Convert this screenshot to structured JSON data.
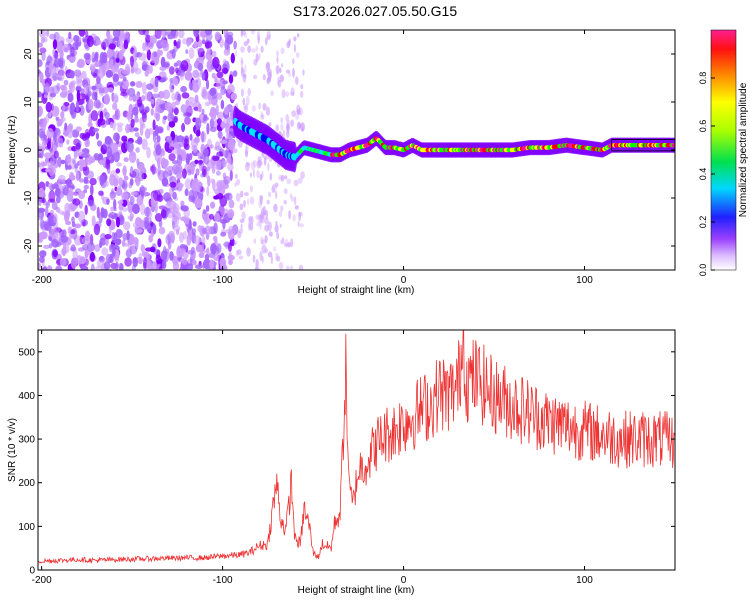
{
  "title": "S173.2026.027.05.50.G15",
  "chart_data": [
    {
      "type": "heatmap",
      "xlabel": "Height of straight line (km)",
      "ylabel": "Frequency (Hz)",
      "xlim": [
        -202,
        150
      ],
      "ylim": [
        -25,
        25
      ],
      "xticks": [
        -200,
        -100,
        0,
        100
      ],
      "yticks": [
        -20,
        -10,
        0,
        10,
        20
      ],
      "colorbar": {
        "label": "Normalized spectral amplitude",
        "range": [
          0,
          1
        ],
        "ticks": [
          0.0,
          0.2,
          0.4,
          0.6,
          0.8
        ],
        "colors": [
          "#ffffff",
          "#cc99ff",
          "#7f00ff",
          "#0000ff",
          "#00e5ff",
          "#00ff00",
          "#ffff00",
          "#ff8000",
          "#ff0000",
          "#ff1493"
        ]
      },
      "ridge": {
        "x": [
          -93,
          -90,
          -85,
          -80,
          -75,
          -70,
          -65,
          -60,
          -55,
          -50,
          -45,
          -40,
          -35,
          -30,
          -25,
          -20,
          -15,
          -10,
          -5,
          0,
          5,
          10,
          15,
          20,
          30,
          40,
          50,
          60,
          70,
          80,
          90,
          100,
          110,
          115,
          120,
          130,
          140,
          150
        ],
        "y": [
          6,
          5,
          4,
          3,
          2,
          0.5,
          -1,
          -1.5,
          0.5,
          0,
          -0.5,
          -1,
          -1,
          0,
          0.5,
          1,
          2.5,
          0.5,
          0.5,
          0,
          1,
          0,
          0,
          0,
          0,
          0,
          0,
          0,
          0.5,
          0.5,
          1,
          0.5,
          0,
          1,
          1,
          1,
          1,
          1
        ]
      },
      "noise_region": {
        "x_start": -202,
        "x_end": -93
      },
      "sparse_region": {
        "x_start": -93,
        "x_end": -55
      }
    },
    {
      "type": "line",
      "xlabel": "Height of straight line (km)",
      "ylabel": "SNR (10 * v/v)",
      "xlim": [
        -202,
        150
      ],
      "ylim": [
        0,
        550
      ],
      "xticks": [
        -200,
        -100,
        0,
        100
      ],
      "yticks": [
        0,
        100,
        200,
        300,
        400,
        500
      ],
      "color": "#ee3333",
      "series": {
        "x": [
          -202,
          -190,
          -180,
          -170,
          -160,
          -150,
          -140,
          -130,
          -120,
          -110,
          -100,
          -90,
          -85,
          -80,
          -75,
          -72,
          -70,
          -68,
          -65,
          -62,
          -60,
          -57,
          -55,
          -52,
          -50,
          -47,
          -45,
          -40,
          -38,
          -35,
          -32,
          -30,
          -28,
          -25,
          -20,
          -15,
          -10,
          -5,
          0,
          5,
          10,
          15,
          20,
          25,
          30,
          33,
          35,
          40,
          45,
          50,
          60,
          70,
          80,
          90,
          100,
          110,
          120,
          130,
          140,
          150
        ],
        "y": [
          20,
          22,
          24,
          22,
          24,
          25,
          26,
          27,
          28,
          28,
          32,
          35,
          40,
          55,
          60,
          150,
          200,
          120,
          90,
          200,
          70,
          60,
          140,
          100,
          40,
          30,
          60,
          50,
          110,
          130,
          460,
          180,
          150,
          230,
          250,
          290,
          310,
          320,
          340,
          350,
          370,
          380,
          410,
          400,
          420,
          540,
          430,
          440,
          420,
          400,
          380,
          360,
          340,
          330,
          320,
          310,
          300,
          300,
          300,
          295
        ]
      }
    }
  ]
}
